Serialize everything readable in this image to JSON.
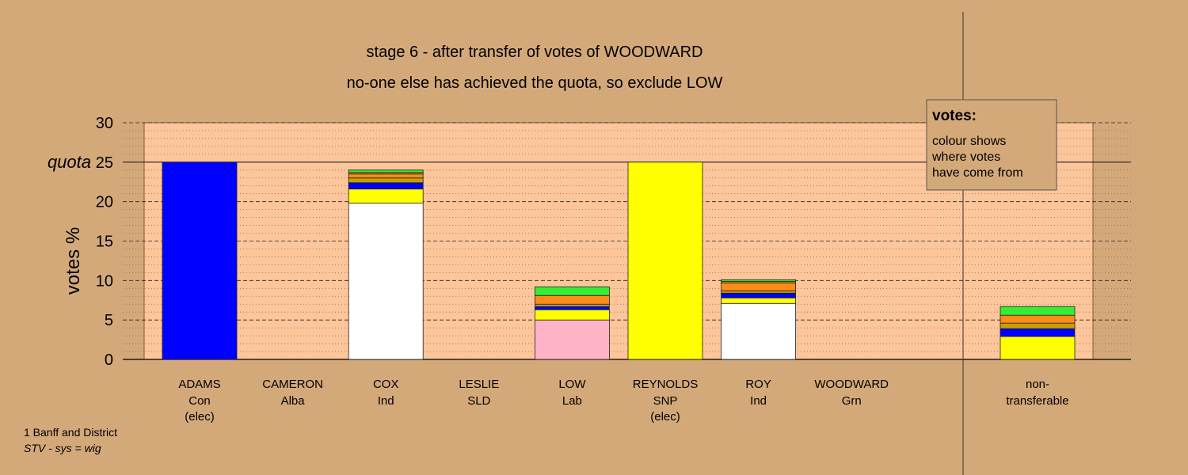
{
  "chart_data": {
    "type": "bar",
    "title": "stage 6 - after transfer of votes of WOODWARD",
    "subtitle": "no-one else has achieved the quota, so exclude LOW",
    "ylabel": "votes %",
    "ylim": [
      0,
      30
    ],
    "yticks": [
      0,
      5,
      10,
      15,
      20,
      25,
      30
    ],
    "quota": 25,
    "quota_label": "quota",
    "grid": true,
    "legend": {
      "title": "votes:",
      "lines": [
        "colour shows",
        "where votes",
        "have come from"
      ],
      "placement": "top-right"
    },
    "source_colors": {
      "Con": "#0000ff",
      "Alba": "#444444",
      "Ind": "#ffffff",
      "SLD": "#ff8c1a",
      "Lab": "#ffb3c6",
      "SNP": "#ffff00",
      "Grn": "#33ee33",
      "other": "#c8a000"
    },
    "candidates": [
      {
        "name": "ADAMS",
        "party": "Con",
        "note": "(elec)",
        "segments": [
          {
            "from": "Con",
            "value": 25.0
          }
        ]
      },
      {
        "name": "CAMERON",
        "party": "Alba",
        "note": "",
        "segments": []
      },
      {
        "name": "COX",
        "party": "Ind",
        "note": "",
        "segments": [
          {
            "from": "Ind",
            "value": 19.8
          },
          {
            "from": "SNP",
            "value": 1.8
          },
          {
            "from": "Con",
            "value": 0.8
          },
          {
            "from": "other",
            "value": 0.6
          },
          {
            "from": "SLD",
            "value": 0.5
          },
          {
            "from": "other",
            "value": 0.2
          },
          {
            "from": "Grn",
            "value": 0.3
          }
        ]
      },
      {
        "name": "LESLIE",
        "party": "SLD",
        "note": "",
        "segments": []
      },
      {
        "name": "LOW",
        "party": "Lab",
        "note": "",
        "segments": [
          {
            "from": "Lab",
            "value": 5.0
          },
          {
            "from": "SNP",
            "value": 1.3
          },
          {
            "from": "Con",
            "value": 0.4
          },
          {
            "from": "other",
            "value": 0.3
          },
          {
            "from": "SLD",
            "value": 1.1
          },
          {
            "from": "Grn",
            "value": 1.1
          }
        ]
      },
      {
        "name": "REYNOLDS",
        "party": "SNP",
        "note": "(elec)",
        "segments": [
          {
            "from": "SNP",
            "value": 25.0
          }
        ]
      },
      {
        "name": "ROY",
        "party": "Ind",
        "note": "",
        "segments": [
          {
            "from": "Ind",
            "value": 7.1
          },
          {
            "from": "SNP",
            "value": 0.7
          },
          {
            "from": "Con",
            "value": 0.6
          },
          {
            "from": "other",
            "value": 0.3
          },
          {
            "from": "SLD",
            "value": 1.0
          },
          {
            "from": "other",
            "value": 0.2
          },
          {
            "from": "Grn",
            "value": 0.2
          }
        ]
      },
      {
        "name": "WOODWARD",
        "party": "Grn",
        "note": "",
        "segments": []
      }
    ],
    "nontransferable": {
      "label_lines": [
        "non-",
        "transferable"
      ],
      "segments": [
        {
          "from": "SNP",
          "value": 2.9
        },
        {
          "from": "Con",
          "value": 1.0
        },
        {
          "from": "other",
          "value": 0.7
        },
        {
          "from": "SLD",
          "value": 1.0
        },
        {
          "from": "Grn",
          "value": 1.1
        }
      ]
    }
  },
  "footer": {
    "constituency": "1 Banff and District",
    "system": "STV - sys = wig"
  }
}
